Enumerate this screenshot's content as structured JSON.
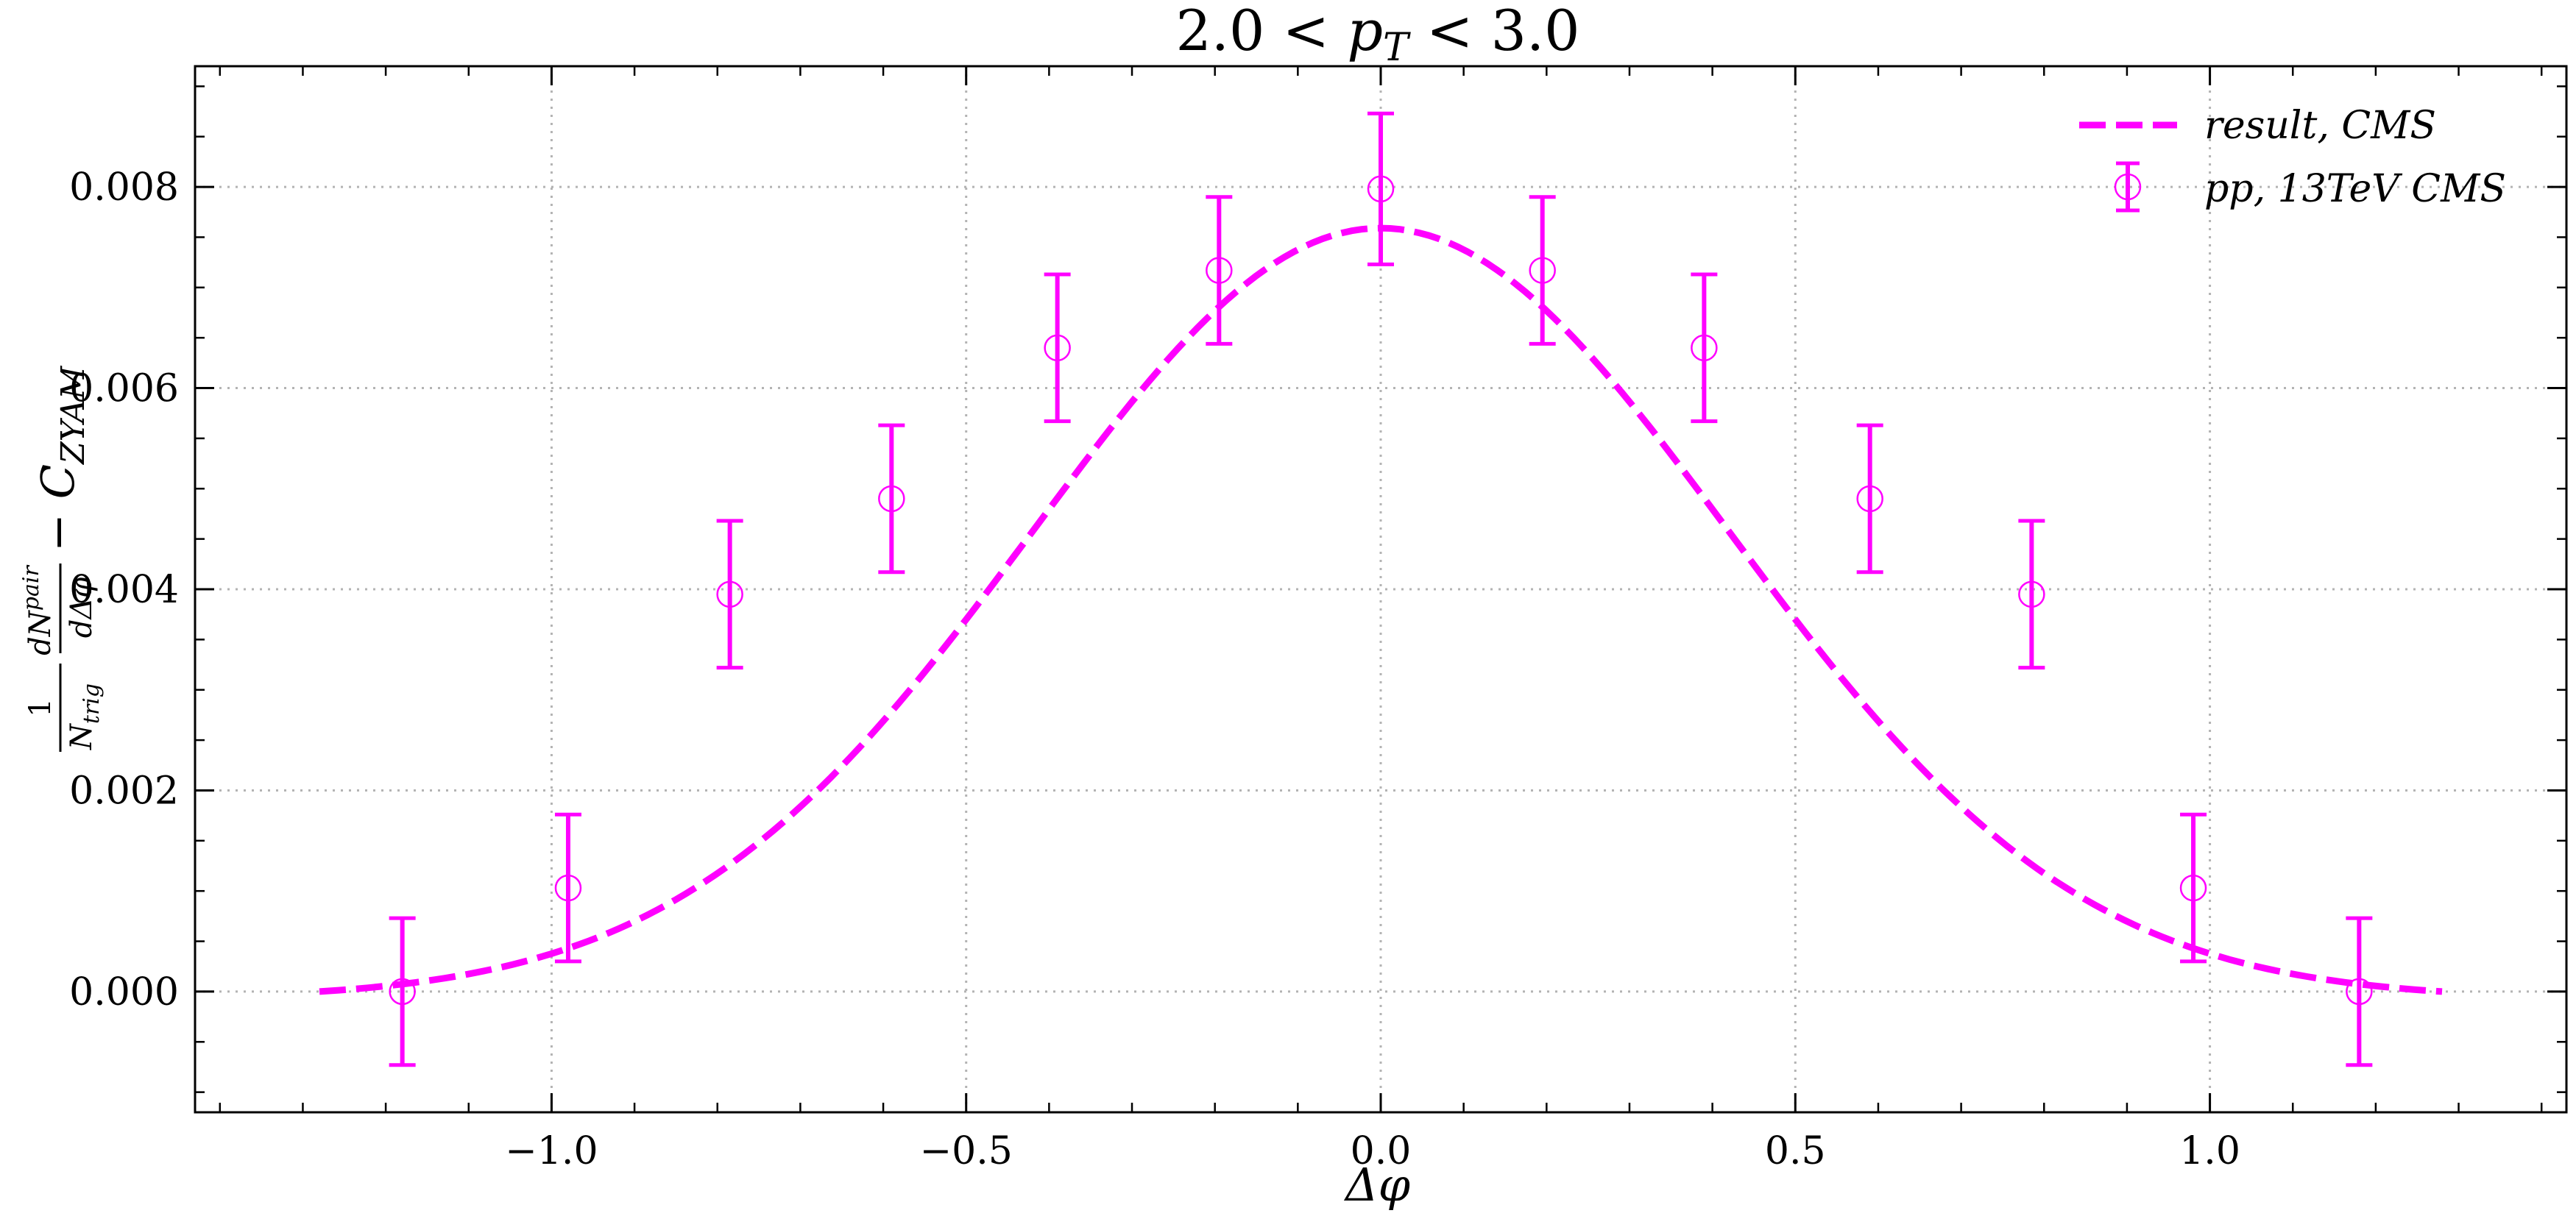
{
  "chart_data": {
    "type": "scatter",
    "title_prefix": "2.0 < ",
    "title_var": "p",
    "title_sub": "T",
    "title_suffix": " < 3.0",
    "xlabel": "Δφ",
    "ylabel": {
      "num_frac_top": "1",
      "num_frac_bottom": "N",
      "num_frac_bottom_sub": "trig",
      "den_frac_top": "dN",
      "den_frac_top_sup": "pair",
      "den_frac_bottom": "dΔφ",
      "tail": "− C",
      "tail_sub": "ZYAM"
    },
    "xlim": [
      -1.43,
      1.43
    ],
    "ylim": [
      -0.0012,
      0.0092
    ],
    "xticks": [
      -1.0,
      -0.5,
      0.0,
      0.5,
      1.0
    ],
    "xtick_labels": [
      "−1.0",
      "−0.5",
      "0.0",
      "0.5",
      "1.0"
    ],
    "yticks": [
      0.0,
      0.002,
      0.004,
      0.006,
      0.008
    ],
    "ytick_labels": [
      "0.000",
      "0.002",
      "0.004",
      "0.006",
      "0.008"
    ],
    "grid": true,
    "legend_placement": "top-right",
    "colors": {
      "series": "#ff00ff"
    },
    "series": [
      {
        "name": "result, CMS",
        "kind": "line",
        "style": "dashed",
        "x_range": [
          -1.28,
          1.28
        ],
        "model": "gaussian",
        "peak": 0.00759,
        "sigma": 0.42
      },
      {
        "name": "pp, 13TeV CMS",
        "kind": "errorbar",
        "marker": "open-circle",
        "x": [
          -1.18,
          -0.98,
          -0.785,
          -0.59,
          -0.39,
          -0.195,
          0.0,
          0.195,
          0.39,
          0.59,
          0.785,
          0.98,
          1.18
        ],
        "y": [
          0.0,
          0.00103,
          0.00395,
          0.0049,
          0.0064,
          0.00717,
          0.00798,
          0.00717,
          0.0064,
          0.0049,
          0.00395,
          0.00103,
          0.0
        ],
        "err": [
          0.00073,
          0.00073,
          0.00073,
          0.00073,
          0.00073,
          0.00073,
          0.00075,
          0.00073,
          0.00073,
          0.00073,
          0.00073,
          0.00073,
          0.00073
        ]
      }
    ]
  }
}
